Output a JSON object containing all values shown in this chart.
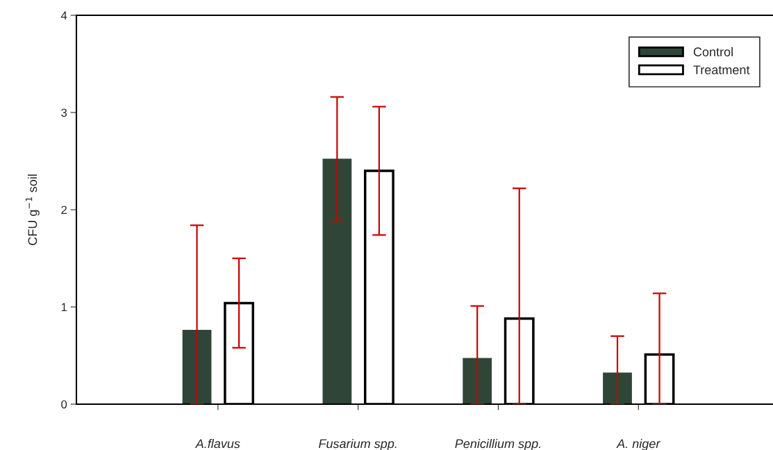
{
  "chart_data": {
    "type": "bar",
    "ylabel": "CFU g$^{−1}$ soil",
    "categories": [
      "A.flavus",
      "Fusarium spp.",
      "Penicillium spp.",
      "A. niger"
    ],
    "series": [
      {
        "name": "Control",
        "color": "#2f4538",
        "values": [
          0.76,
          2.52,
          0.47,
          0.32
        ],
        "errors": [
          [
            0,
            1.84
          ],
          0.64,
          [
            0,
            1.01
          ],
          [
            0,
            0.7
          ]
        ]
      },
      {
        "name": "Treatment",
        "color": "#ffffff",
        "values": [
          1.04,
          2.4,
          0.88,
          0.51
        ],
        "errors": [
          0.46,
          0.66,
          [
            0,
            2.22
          ],
          [
            0,
            1.14
          ]
        ]
      }
    ],
    "ylim": [
      0,
      4
    ],
    "yticks": [
      0,
      1,
      2,
      3,
      4
    ],
    "grid": false,
    "legend": "top right"
  }
}
